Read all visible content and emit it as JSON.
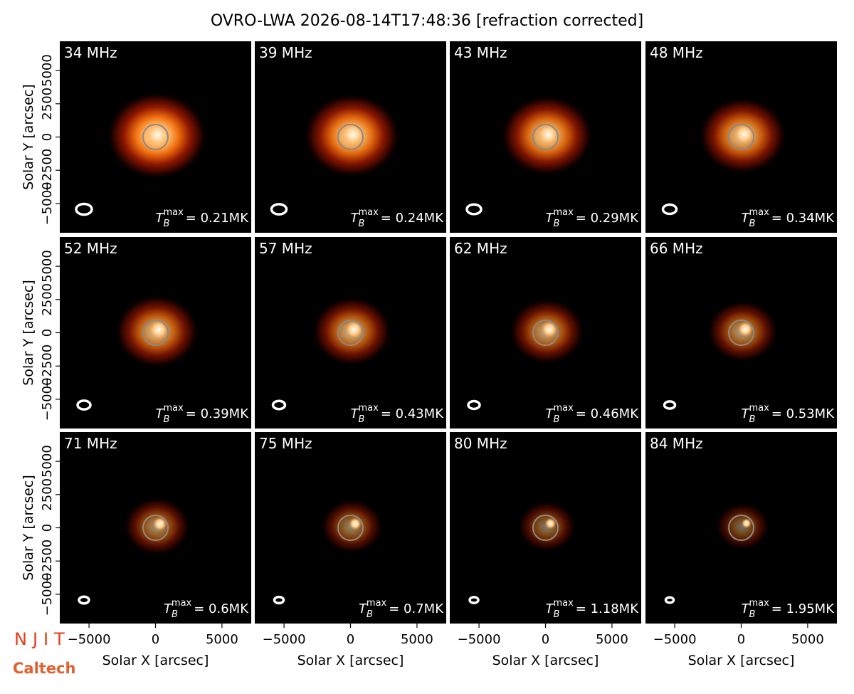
{
  "title": "OVRO-LWA 2026-08-14T17:48:36 [refraction corrected]",
  "annotation_symbol": {
    "base": "T",
    "sub": "B",
    "sup": "max"
  },
  "logos": [
    "NJIT",
    "Caltech"
  ],
  "chart_data": [
    {
      "type": "image",
      "title": "34 MHz",
      "annotation": "= 0.21MK",
      "xlim": [
        -7200,
        7200
      ],
      "ylim": [
        -7200,
        7200
      ],
      "ylabel": "Solar Y [arcsec]",
      "yticks": [
        {
          "value": -5000,
          "label": "−5000"
        },
        {
          "value": -2500,
          "label": "−2500"
        },
        0,
        2500,
        5000
      ]
    },
    {
      "type": "image",
      "title": "39 MHz",
      "annotation": "= 0.24MK",
      "xlim": [
        -7200,
        7200
      ],
      "ylim": [
        -7200,
        7200
      ]
    },
    {
      "type": "image",
      "title": "43 MHz",
      "annotation": "= 0.29MK",
      "xlim": [
        -7200,
        7200
      ],
      "ylim": [
        -7200,
        7200
      ]
    },
    {
      "type": "image",
      "title": "48 MHz",
      "annotation": "= 0.34MK",
      "xlim": [
        -7200,
        7200
      ],
      "ylim": [
        -7200,
        7200
      ]
    },
    {
      "type": "image",
      "title": "52 MHz",
      "annotation": "= 0.39MK",
      "xlim": [
        -7200,
        7200
      ],
      "ylim": [
        -7200,
        7200
      ],
      "ylabel": "Solar Y [arcsec]",
      "yticks": [
        {
          "value": -5000,
          "label": "−5000"
        },
        {
          "value": -2500,
          "label": "−2500"
        },
        0,
        2500,
        5000
      ]
    },
    {
      "type": "image",
      "title": "57 MHz",
      "annotation": "= 0.43MK",
      "xlim": [
        -7200,
        7200
      ],
      "ylim": [
        -7200,
        7200
      ]
    },
    {
      "type": "image",
      "title": "62 MHz",
      "annotation": "= 0.46MK",
      "xlim": [
        -7200,
        7200
      ],
      "ylim": [
        -7200,
        7200
      ]
    },
    {
      "type": "image",
      "title": "66 MHz",
      "annotation": "= 0.53MK",
      "xlim": [
        -7200,
        7200
      ],
      "ylim": [
        -7200,
        7200
      ]
    },
    {
      "type": "image",
      "title": "71 MHz",
      "annotation": "= 0.6MK",
      "xlim": [
        -7200,
        7200
      ],
      "ylim": [
        -7200,
        7200
      ],
      "ylabel": "Solar Y [arcsec]",
      "yticks": [
        {
          "value": -5000,
          "label": "−5000"
        },
        {
          "value": -2500,
          "label": "−2500"
        },
        0,
        2500,
        5000
      ],
      "xlabel": "Solar X [arcsec]",
      "xticks": [
        {
          "value": -5000,
          "label": "−5000"
        },
        0,
        5000
      ]
    },
    {
      "type": "image",
      "title": "75 MHz",
      "annotation": "= 0.7MK",
      "xlim": [
        -7200,
        7200
      ],
      "ylim": [
        -7200,
        7200
      ],
      "xlabel": "Solar X [arcsec]",
      "xticks": [
        {
          "value": -5000,
          "label": "−5000"
        },
        0,
        5000
      ]
    },
    {
      "type": "image",
      "title": "80 MHz",
      "annotation": "= 1.18MK",
      "xlim": [
        -7200,
        7200
      ],
      "ylim": [
        -7200,
        7200
      ],
      "xlabel": "Solar X [arcsec]",
      "xticks": [
        {
          "value": -5000,
          "label": "−5000"
        },
        0,
        5000
      ]
    },
    {
      "type": "image",
      "title": "84 MHz",
      "annotation": "= 1.95MK",
      "xlim": [
        -7200,
        7200
      ],
      "ylim": [
        -7200,
        7200
      ],
      "xlabel": "Solar X [arcsec]",
      "xticks": [
        {
          "value": -5000,
          "label": "−5000"
        },
        0,
        5000
      ]
    }
  ]
}
